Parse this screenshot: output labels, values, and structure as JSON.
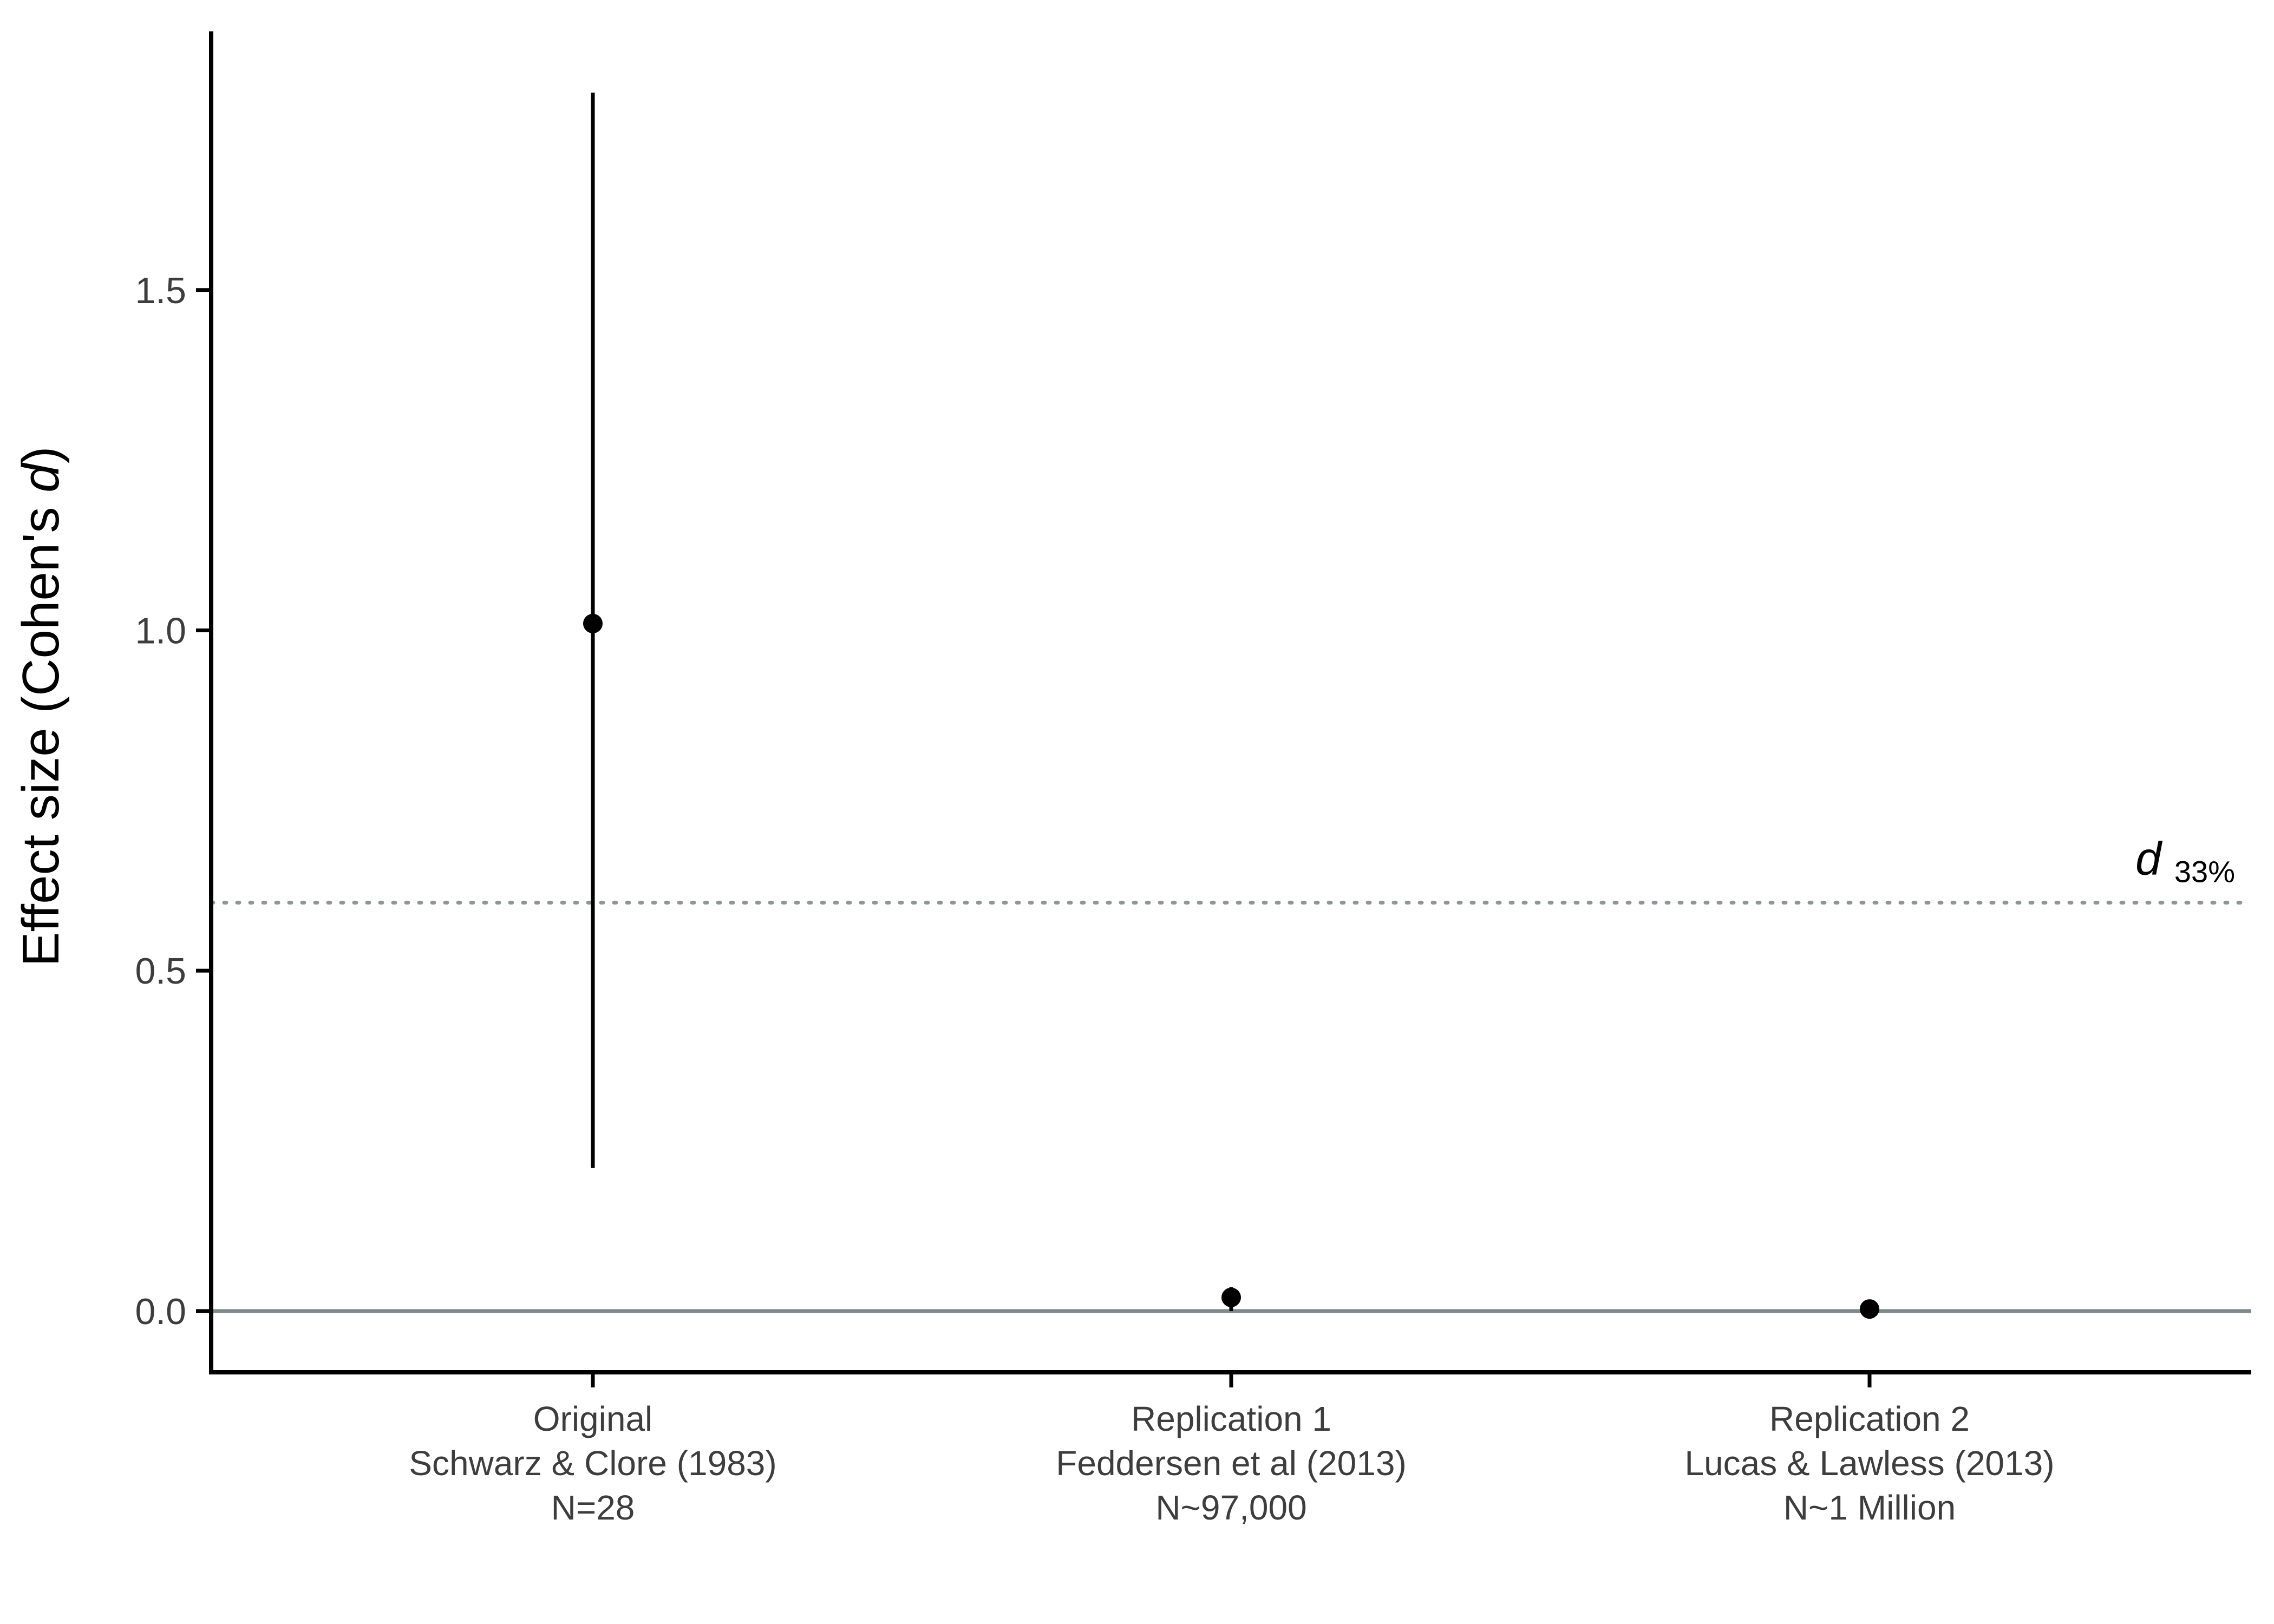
{
  "chart_data": {
    "type": "scatter",
    "subtype": "pointrange",
    "title": "",
    "xlabel": "",
    "ylabel": {
      "prefix": "Effect size (Cohen's ",
      "italic": "d",
      "suffix": ")"
    },
    "ylim": [
      -0.09,
      1.88
    ],
    "yticks": [
      0.0,
      0.5,
      1.0,
      1.5
    ],
    "ytick_labels": [
      "0.0",
      "0.5",
      "1.0",
      "1.5"
    ],
    "grid": false,
    "categories": [
      {
        "lines": [
          "Original",
          "Schwarz & Clore (1983)",
          "N=28"
        ],
        "estimate": 1.01,
        "ci_low": 0.21,
        "ci_high": 1.79
      },
      {
        "lines": [
          "Replication 1",
          "Feddersen et al (2013)",
          "N~97,000"
        ],
        "estimate": 0.02,
        "ci_low": 0.0,
        "ci_high": 0.035
      },
      {
        "lines": [
          "Replication 2",
          "Lucas & Lawless (2013)",
          "N~1 Million"
        ],
        "estimate": 0.003,
        "ci_low": -0.002,
        "ci_high": 0.008
      }
    ],
    "reference_lines": [
      {
        "value": 0.0,
        "style": "solid",
        "color": "#7f8a8c"
      },
      {
        "value": 0.6,
        "style": "dotted",
        "color": "#8d9699",
        "label_main": "d",
        "label_sub": "33%"
      }
    ],
    "colors": {
      "points": "#000000",
      "axis": "#000000"
    }
  }
}
